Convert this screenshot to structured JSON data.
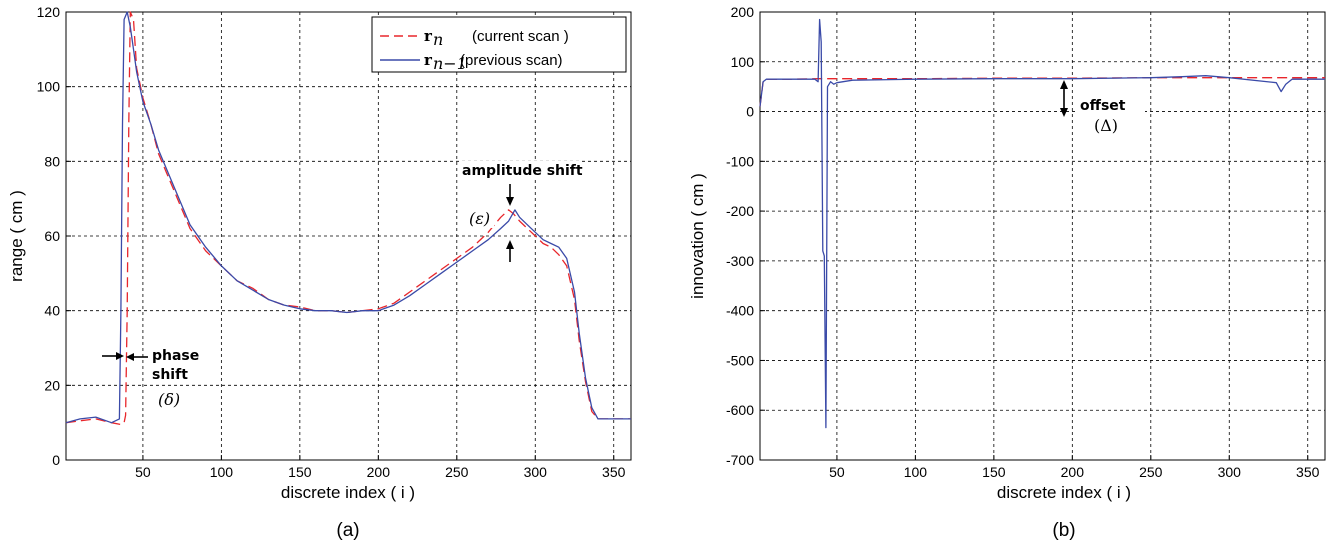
{
  "colors": {
    "current": "#e8262b",
    "previous": "#3a4aa8"
  },
  "panels": [
    {
      "label": "(a)"
    },
    {
      "label": "(b)"
    }
  ],
  "annotations_a": {
    "phase_shift_line1": "phase",
    "phase_shift_line2": "shift",
    "phase_symbol": "(δ)",
    "amplitude_shift": "amplitude shift",
    "amplitude_symbol": "(ε)"
  },
  "annotations_b": {
    "offset": "offset",
    "offset_symbol": "(Δ)"
  },
  "chart_data": [
    {
      "type": "line",
      "xlabel": "discrete index ( i )",
      "ylabel": "range ( cm )",
      "xlim": [
        1,
        361
      ],
      "ylim": [
        0,
        120
      ],
      "xticks": [
        50,
        100,
        150,
        200,
        250,
        300,
        350
      ],
      "yticks": [
        0,
        20,
        40,
        60,
        80,
        100,
        120
      ],
      "grid": true,
      "legend_position": "top-right",
      "series": [
        {
          "name": "rₙ (current scan )",
          "legend_symbol": "r",
          "legend_sub": "n",
          "legend_text": "(current scan )",
          "style": "dashed",
          "x": [
            1,
            10,
            20,
            30,
            36,
            38,
            39,
            40,
            41,
            42,
            44,
            46,
            50,
            55,
            60,
            70,
            80,
            90,
            100,
            110,
            120,
            130,
            140,
            150,
            160,
            170,
            180,
            190,
            200,
            210,
            220,
            230,
            240,
            250,
            260,
            270,
            278,
            283,
            286,
            290,
            295,
            300,
            305,
            310,
            315,
            320,
            325,
            328,
            332,
            336,
            340,
            345,
            350,
            355,
            361
          ],
          "y": [
            10,
            10.5,
            11,
            10,
            9.5,
            10,
            12,
            40,
            90,
            120,
            118,
            105,
            97,
            90,
            82,
            72,
            62,
            56,
            52,
            48,
            46,
            43,
            41.5,
            41,
            40,
            40,
            39.5,
            40,
            40.5,
            42,
            45,
            48,
            51,
            54,
            57,
            61,
            65,
            67,
            66,
            64,
            62,
            60,
            58,
            57,
            55,
            52,
            43,
            32,
            21,
            13,
            11,
            11,
            11,
            11,
            11
          ]
        },
        {
          "name": "rₙ₋₁(previous scan)",
          "legend_symbol": "r",
          "legend_sub": "n−1",
          "legend_text": "(previous scan)",
          "style": "solid",
          "x": [
            1,
            10,
            20,
            30,
            35,
            36,
            37,
            38,
            40,
            42,
            44,
            46,
            50,
            55,
            60,
            70,
            80,
            90,
            100,
            110,
            120,
            130,
            140,
            150,
            160,
            170,
            180,
            190,
            200,
            210,
            220,
            230,
            240,
            250,
            260,
            270,
            278,
            283,
            287,
            290,
            295,
            300,
            305,
            310,
            315,
            320,
            325,
            328,
            332,
            336,
            340,
            345,
            350,
            355,
            361
          ],
          "y": [
            10,
            11,
            11.5,
            10,
            11,
            40,
            90,
            118,
            120,
            116,
            110,
            104,
            96,
            90,
            83,
            73,
            63,
            57,
            52,
            48,
            45.5,
            43,
            41.5,
            40.5,
            40,
            40,
            39.5,
            40,
            40,
            41.5,
            44,
            47,
            50,
            53,
            56,
            59,
            62,
            64,
            67,
            65,
            63,
            61,
            59,
            58,
            57,
            54,
            45,
            34,
            22,
            14,
            11,
            11,
            11,
            11,
            11
          ]
        }
      ]
    },
    {
      "type": "line",
      "xlabel": "discrete index ( i )",
      "ylabel": "innovation ( cm )",
      "xlim": [
        1,
        361
      ],
      "ylim": [
        -700,
        200
      ],
      "xticks": [
        50,
        100,
        150,
        200,
        250,
        300,
        350
      ],
      "yticks": [
        -700,
        -600,
        -500,
        -400,
        -300,
        -200,
        -100,
        0,
        100,
        200
      ],
      "grid": true,
      "series": [
        {
          "name": "current",
          "style": "dashed",
          "x": [
            1,
            3,
            5,
            20,
            38,
            40,
            41,
            42,
            43,
            44,
            45,
            50,
            60,
            100,
            150,
            200,
            250,
            300,
            330,
            335,
            361
          ],
          "y": [
            10,
            60,
            65,
            65,
            66,
            66,
            66,
            66,
            66,
            66,
            66,
            66,
            66,
            66,
            67,
            67,
            68,
            68,
            68,
            68,
            68
          ]
        },
        {
          "name": "previous",
          "style": "solid",
          "x": [
            1,
            3,
            5,
            20,
            36,
            38,
            39,
            40,
            41,
            42,
            43,
            44,
            46,
            48,
            50,
            60,
            100,
            150,
            200,
            250,
            270,
            285,
            300,
            330,
            333,
            336,
            340,
            361
          ],
          "y": [
            10,
            60,
            65,
            65,
            65,
            60,
            185,
            140,
            -280,
            -290,
            -635,
            50,
            60,
            55,
            58,
            63,
            65,
            66,
            66,
            68,
            70,
            72,
            68,
            58,
            40,
            55,
            65,
            65
          ]
        }
      ]
    }
  ]
}
